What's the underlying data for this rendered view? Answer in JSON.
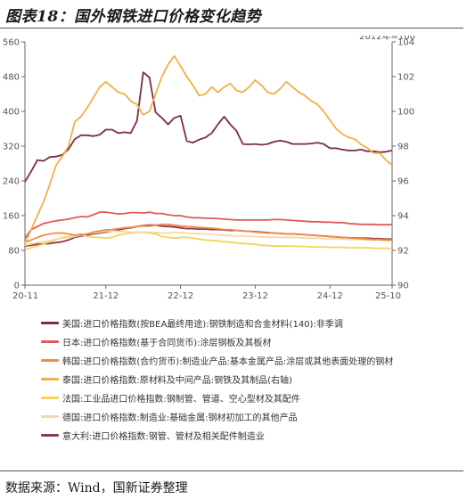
{
  "header": {
    "title": "图表18：国外钢铁进口价格变化趋势"
  },
  "footer": {
    "source": "数据来源：Wind，国新证券整理"
  },
  "chart_data": {
    "type": "line",
    "left_axis": {
      "ticks": [
        "0",
        "80",
        "160",
        "240",
        "320",
        "400",
        "480",
        "560"
      ],
      "ylim": [
        0,
        560
      ]
    },
    "right_axis": {
      "ticks": [
        "90",
        "92",
        "94",
        "96",
        "98",
        "100",
        "102",
        "104"
      ],
      "ylim": [
        90,
        104
      ],
      "note": "2012年=100"
    },
    "x_ticks": [
      "20-11",
      "21-12",
      "22-12",
      "23-12",
      "24-12",
      "25-10"
    ],
    "x_tick_pos": [
      0,
      13,
      25,
      37,
      49,
      59
    ],
    "x_range": [
      0,
      59
    ],
    "grid": false,
    "series": [
      {
        "name": "美国:进口价格指数(按BEA最终用途):钢铁制造和合金材料(140):非季调",
        "color": "#7b2c48",
        "axis": "left",
        "values": [
          238,
          262,
          288,
          286,
          295,
          296,
          300,
          313,
          336,
          345,
          345,
          343,
          346,
          358,
          358,
          350,
          352,
          350,
          378,
          490,
          478,
          398,
          385,
          370,
          385,
          390,
          332,
          328,
          335,
          340,
          350,
          370,
          388,
          370,
          355,
          325,
          324,
          325,
          323,
          325,
          330,
          333,
          330,
          325,
          325,
          325,
          326,
          328,
          325,
          315,
          315,
          312,
          310,
          310,
          312,
          308,
          308,
          306,
          307,
          310
        ]
      },
      {
        "name": "日本:进口价格指数(基于合同货币):涂层钢板及其板材",
        "color": "#e05a5a",
        "axis": "left",
        "values": [
          108,
          128,
          135,
          142,
          145,
          148,
          150,
          152,
          155,
          158,
          157,
          162,
          168,
          168,
          166,
          164,
          165,
          167,
          167,
          166,
          168,
          165,
          165,
          162,
          160,
          160,
          157,
          155,
          155,
          154,
          154,
          153,
          152,
          151,
          150,
          150,
          150,
          150,
          150,
          150,
          151,
          151,
          150,
          149,
          148,
          147,
          146,
          146,
          145,
          145,
          144,
          144,
          142,
          141,
          140,
          140,
          140,
          139,
          139,
          139
        ]
      },
      {
        "name": "韩国:进口价格指数(合约货币):制造业产品:基本金属产品:涂层或其他表面处理的钢材",
        "color": "#ee8b4a",
        "axis": "left",
        "values": [
          98,
          104,
          110,
          115,
          118,
          120,
          120,
          118,
          115,
          116,
          118,
          122,
          125,
          127,
          128,
          130,
          132,
          133,
          135,
          136,
          136,
          138,
          140,
          140,
          138,
          136,
          135,
          134,
          133,
          132,
          131,
          130,
          128,
          128,
          126,
          125,
          124,
          122,
          121,
          120,
          120,
          119,
          118,
          118,
          117,
          116,
          115,
          114,
          113,
          112,
          111,
          110,
          109,
          108,
          107,
          106,
          105,
          105,
          104,
          104
        ]
      },
      {
        "name": "泰国:进口价格指数:原材料及中间产品:钢铁及其制品(右轴)",
        "color": "#f2b045",
        "axis": "right",
        "values": [
          92.4,
          93.2,
          94.0,
          94.8,
          95.8,
          96.9,
          97.4,
          98.0,
          99.4,
          99.7,
          100.2,
          100.8,
          101.4,
          101.7,
          101.4,
          101.1,
          101.0,
          100.6,
          100.4,
          99.8,
          100.0,
          101.0,
          102.0,
          102.7,
          103.2,
          102.6,
          102.0,
          101.5,
          100.9,
          101.0,
          101.4,
          101.1,
          101.4,
          101.6,
          101.2,
          101.1,
          101.4,
          101.8,
          101.5,
          101.1,
          101.0,
          101.3,
          101.7,
          101.4,
          101.1,
          100.9,
          100.6,
          100.4,
          100.0,
          99.5,
          99.0,
          98.7,
          98.5,
          98.4,
          98.1,
          97.9,
          97.6,
          97.6,
          97.2,
          96.9
        ]
      },
      {
        "name": "法国:工业品进口价格指数:钢制管、管道、空心型材及其配件",
        "color": "#f6d35a",
        "axis": "left",
        "values": [
          82,
          86,
          90,
          95,
          100,
          105,
          110,
          112,
          115,
          118,
          112,
          110,
          110,
          108,
          110,
          115,
          118,
          120,
          122,
          121,
          120,
          118,
          112,
          110,
          108,
          110,
          110,
          108,
          106,
          104,
          103,
          102,
          100,
          99,
          97,
          96,
          95,
          94,
          92,
          91,
          90,
          90,
          90,
          90,
          89,
          89,
          88,
          88,
          88,
          87,
          87,
          87,
          86,
          86,
          86,
          86,
          85,
          85,
          85,
          84
        ]
      },
      {
        "name": "德国:进口价格指数:制造业:基础金属:钢材初加工的其他产品",
        "color": "#f6d8a6",
        "axis": "left",
        "values": [
          92,
          95,
          98,
          100,
          102,
          106,
          108,
          110,
          112,
          115,
          118,
          120,
          122,
          124,
          125,
          124,
          123,
          122,
          122,
          122,
          122,
          121,
          120,
          120,
          121,
          121,
          120,
          119,
          118,
          118,
          117,
          116,
          115,
          114,
          113,
          113,
          112,
          112,
          111,
          111,
          110,
          110,
          110,
          110,
          109,
          108,
          108,
          108,
          107,
          107,
          107,
          106,
          105,
          105,
          105,
          104,
          104,
          104,
          103,
          103
        ]
      },
      {
        "name": "意大利:进口价格指数:钢管、管材及相关配件制造业",
        "color": "#8d3a4f",
        "axis": "left",
        "values": [
          90,
          92,
          94,
          95,
          96,
          98,
          100,
          104,
          110,
          113,
          115,
          118,
          120,
          122,
          125,
          127,
          130,
          132,
          135,
          137,
          138,
          138,
          136,
          135,
          134,
          132,
          130,
          130,
          129,
          129,
          128,
          128,
          127,
          126,
          126,
          125,
          124,
          123,
          122,
          121,
          120,
          119,
          118,
          118,
          117,
          116,
          115,
          114,
          113,
          112,
          111,
          110,
          109,
          109,
          108,
          108,
          107,
          107,
          106,
          106
        ]
      }
    ]
  }
}
